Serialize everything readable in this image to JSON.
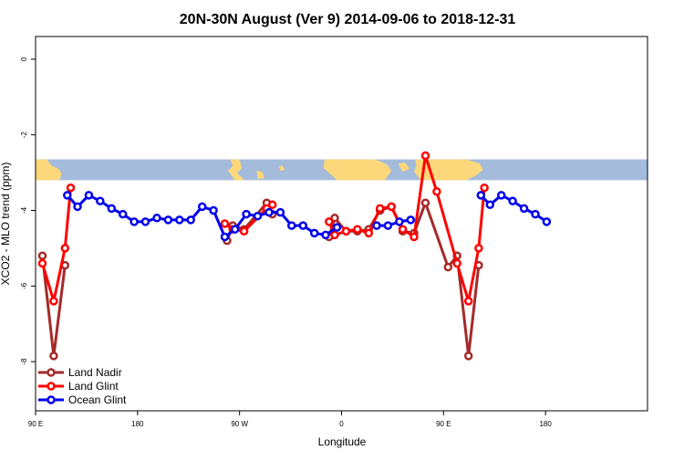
{
  "chart_data": {
    "type": "line",
    "title": "20N-30N August (Ver 9)   2014-09-06 to 2018-12-31",
    "xlabel": "Longitude",
    "ylabel": "XCO2 - MLO trend (ppm)",
    "xlim": [
      90,
      630
    ],
    "ylim": [
      -9.3,
      0.6
    ],
    "x_ticks": [
      {
        "value": 90,
        "label": "90 E"
      },
      {
        "value": 180,
        "label": "180"
      },
      {
        "value": 270,
        "label": "90 W"
      },
      {
        "value": 360,
        "label": "0"
      },
      {
        "value": 450,
        "label": "90 E"
      },
      {
        "value": 540,
        "label": "180"
      }
    ],
    "y_ticks": [
      {
        "value": 0,
        "label": "0"
      },
      {
        "value": -2,
        "label": "-2"
      },
      {
        "value": -4,
        "label": "-4"
      },
      {
        "value": -6,
        "label": "-6"
      },
      {
        "value": -8,
        "label": "-8"
      }
    ],
    "map_strip": {
      "y_top": -2.65,
      "y_bottom": -3.2,
      "ocean_color": "#a4bbdb",
      "land_color": "#fdd87a"
    },
    "legend_position": "bottom-left",
    "series": [
      {
        "name": "Land Nadir",
        "color": "#a52a2a",
        "segments": [
          [
            [
              96,
              -5.2
            ],
            [
              106,
              -7.85
            ],
            [
              116,
              -5.45
            ]
          ],
          [
            [
              259,
              -4.8
            ],
            [
              264,
              -4.4
            ],
            [
              274,
              -4.5
            ],
            [
              294,
              -3.8
            ],
            [
              299,
              -4.1
            ]
          ],
          [
            [
              349,
              -4.7
            ],
            [
              354,
              -4.2
            ],
            [
              364,
              -4.55
            ],
            [
              374,
              -4.55
            ],
            [
              384,
              -4.5
            ],
            [
              394,
              -4.0
            ],
            [
              404,
              -3.9
            ],
            [
              414,
              -4.55
            ],
            [
              424,
              -4.6
            ],
            [
              434,
              -3.8
            ],
            [
              454,
              -5.5
            ],
            [
              462,
              -5.2
            ],
            [
              472,
              -7.85
            ],
            [
              481,
              -5.45
            ]
          ]
        ]
      },
      {
        "name": "Land Glint",
        "color": "#ff0000",
        "segments": [
          [
            [
              96,
              -5.4
            ],
            [
              106,
              -6.4
            ],
            [
              116,
              -5.0
            ],
            [
              121,
              -3.4
            ]
          ],
          [
            [
              257,
              -4.35
            ],
            [
              264,
              -4.5
            ],
            [
              274,
              -4.55
            ],
            [
              294,
              -3.95
            ],
            [
              299,
              -3.85
            ]
          ],
          [
            [
              349,
              -4.3
            ],
            [
              354,
              -4.65
            ],
            [
              364,
              -4.55
            ],
            [
              374,
              -4.5
            ],
            [
              384,
              -4.6
            ],
            [
              394,
              -3.95
            ],
            [
              404,
              -3.9
            ],
            [
              414,
              -4.5
            ],
            [
              424,
              -4.7
            ],
            [
              434,
              -2.55
            ],
            [
              444,
              -3.5
            ],
            [
              462,
              -5.4
            ],
            [
              472,
              -6.4
            ],
            [
              481,
              -5.0
            ],
            [
              486,
              -3.4
            ]
          ]
        ]
      },
      {
        "name": "Ocean Glint",
        "color": "#0000ee",
        "segments": [
          [
            [
              118,
              -3.6
            ],
            [
              127,
              -3.9
            ],
            [
              137,
              -3.6
            ],
            [
              147,
              -3.75
            ],
            [
              157,
              -3.95
            ],
            [
              167,
              -4.1
            ],
            [
              177,
              -4.3
            ],
            [
              187,
              -4.3
            ],
            [
              197,
              -4.2
            ],
            [
              207,
              -4.25
            ],
            [
              217,
              -4.25
            ],
            [
              227,
              -4.25
            ],
            [
              237,
              -3.9
            ],
            [
              247,
              -4.0
            ],
            [
              257,
              -4.7
            ],
            [
              266,
              -4.5
            ],
            [
              276,
              -4.1
            ],
            [
              286,
              -4.15
            ],
            [
              296,
              -4.05
            ],
            [
              306,
              -4.05
            ],
            [
              316,
              -4.4
            ],
            [
              326,
              -4.4
            ],
            [
              336,
              -4.6
            ],
            [
              346,
              -4.65
            ],
            [
              356,
              -4.45
            ]
          ],
          [
            [
              391,
              -4.4
            ],
            [
              401,
              -4.4
            ],
            [
              411,
              -4.3
            ],
            [
              421,
              -4.25
            ]
          ],
          [
            [
              483,
              -3.6
            ],
            [
              491,
              -3.85
            ],
            [
              501,
              -3.6
            ],
            [
              511,
              -3.75
            ],
            [
              521,
              -3.95
            ],
            [
              531,
              -4.1
            ],
            [
              541,
              -4.3
            ]
          ]
        ]
      }
    ]
  }
}
